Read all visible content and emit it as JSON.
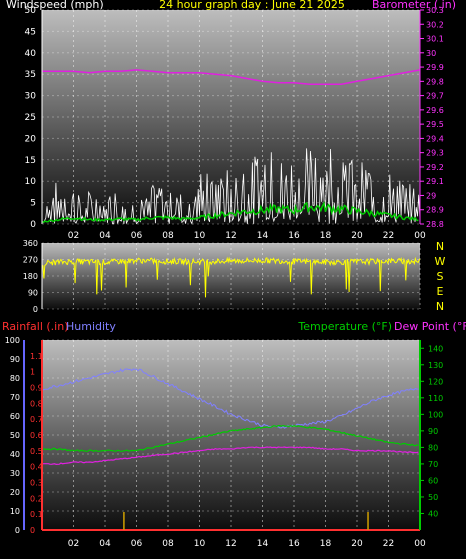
{
  "chart_data": [
    {
      "type": "line",
      "title": "24 hour graph day : June 21 2025",
      "left_label": "Windspeed (mph)",
      "right_label": "Barometer (.in)",
      "x_ticks": [
        "02",
        "04",
        "06",
        "08",
        "10",
        "12",
        "14",
        "16",
        "18",
        "20",
        "22",
        "00"
      ],
      "ylim_left": [
        0,
        50
      ],
      "y_ticks_left": [
        "0",
        "5",
        "10",
        "15",
        "20",
        "25",
        "30",
        "35",
        "40",
        "45",
        "50"
      ],
      "ylim_right": [
        28.8,
        30.3
      ],
      "y_ticks_right": [
        "28.8",
        "28.9",
        "29",
        "29.1",
        "29.2",
        "29.3",
        "29.4",
        "29.5",
        "29.6",
        "29.7",
        "29.8",
        "29.9",
        "30",
        "30.1",
        "30.2",
        "30.3"
      ],
      "colors": {
        "wind_gust": "#ffffff",
        "wind_avg": "#00cc00",
        "barometer": "#e020e0",
        "left_axis": "#ffffff",
        "right_axis": "#ff33ff",
        "title": "#ffff00"
      },
      "series": [
        {
          "key": "barometer",
          "axis": "right",
          "x": [
            0,
            1,
            2,
            3,
            4,
            5,
            6,
            7,
            8,
            9,
            10,
            11,
            12,
            13,
            14,
            15,
            16,
            17,
            18,
            19,
            20,
            21,
            22,
            23,
            24
          ],
          "values": [
            29.87,
            29.87,
            29.87,
            29.86,
            29.87,
            29.87,
            29.88,
            29.87,
            29.86,
            29.86,
            29.86,
            29.85,
            29.84,
            29.82,
            29.8,
            29.79,
            29.79,
            29.78,
            29.78,
            29.78,
            29.8,
            29.82,
            29.84,
            29.86,
            29.88
          ]
        },
        {
          "key": "wind_gust",
          "axis": "left",
          "x": [
            0,
            1,
            2,
            3,
            4,
            5,
            6,
            7,
            8,
            9,
            10,
            11,
            12,
            13,
            14,
            15,
            16,
            17,
            18,
            19,
            20,
            21,
            22,
            23,
            24
          ],
          "values": [
            3,
            7,
            6,
            5,
            4,
            6,
            3,
            6,
            7,
            6,
            8,
            8,
            9,
            10,
            11,
            12,
            11,
            14,
            13,
            12,
            10,
            9,
            8,
            7,
            5
          ]
        },
        {
          "key": "wind_avg",
          "axis": "left",
          "x": [
            0,
            1,
            2,
            3,
            4,
            5,
            6,
            7,
            8,
            9,
            10,
            11,
            12,
            13,
            14,
            15,
            16,
            17,
            18,
            19,
            20,
            21,
            22,
            23,
            24
          ],
          "values": [
            0.5,
            1,
            1.5,
            1,
            1,
            1.2,
            1,
            1.5,
            1.5,
            1.2,
            1.5,
            2,
            2.5,
            3,
            3.2,
            3.5,
            3.2,
            4,
            3.8,
            3.5,
            3,
            2.5,
            2,
            1.5,
            1
          ]
        }
      ]
    },
    {
      "type": "line",
      "ylim": [
        0,
        360
      ],
      "y_ticks": [
        "0",
        "90",
        "180",
        "270",
        "360"
      ],
      "compass_labels": [
        "N",
        "W",
        "S",
        "E",
        "N"
      ],
      "x_ticks": [
        "02",
        "04",
        "06",
        "08",
        "10",
        "12",
        "14",
        "16",
        "18",
        "20",
        "22",
        "00"
      ],
      "colors": {
        "direction": "#ffff00",
        "compass": "#ffff00"
      },
      "series": [
        {
          "key": "wind_direction",
          "x": [
            0,
            2,
            4,
            6,
            8,
            10,
            12,
            14,
            16,
            18,
            20,
            22,
            24
          ],
          "values": [
            250,
            260,
            255,
            265,
            260,
            258,
            262,
            265,
            260,
            255,
            258,
            262,
            260
          ]
        }
      ]
    },
    {
      "type": "line",
      "left_labels": {
        "rainfall": "Rainfall (.in)",
        "humidity": "Humidity"
      },
      "right_labels": {
        "temperature": "Temperature (°F)",
        "dewpoint": "Dew Point (°F)"
      },
      "x_ticks": [
        "02",
        "04",
        "06",
        "08",
        "10",
        "12",
        "14",
        "16",
        "18",
        "20",
        "22",
        "00"
      ],
      "ylim_humidity": [
        0,
        100
      ],
      "y_ticks_humidity": [
        "0",
        "10",
        "20",
        "30",
        "40",
        "50",
        "60",
        "70",
        "80",
        "90",
        "100"
      ],
      "ylim_rain": [
        0,
        1.2
      ],
      "y_ticks_rain": [
        "0",
        "0.1",
        "0.2",
        "0.3",
        "0.4",
        "0.5",
        "0.6",
        "0.7",
        "0.8",
        "0.9",
        "1",
        "1.1"
      ],
      "ylim_temp": [
        30,
        145
      ],
      "y_ticks_temp": [
        "40",
        "50",
        "60",
        "70",
        "80",
        "90",
        "100",
        "110",
        "120",
        "130",
        "140"
      ],
      "colors": {
        "humidity": "#8080ff",
        "temperature": "#00cc00",
        "dewpoint": "#e020e0",
        "rainfall": "#ff3030",
        "rain_axis": "#ff3030",
        "humidity_axis": "#6666ff",
        "temp_axis": "#00cc00",
        "dewpoint_label": "#ff33ff"
      },
      "series": [
        {
          "key": "humidity",
          "axis": "humidity",
          "x": [
            0,
            1,
            2,
            3,
            4,
            5,
            6,
            7,
            8,
            9,
            10,
            11,
            12,
            13,
            14,
            15,
            16,
            17,
            18,
            19,
            20,
            21,
            22,
            23,
            24
          ],
          "values": [
            74,
            76,
            78,
            80,
            82,
            84,
            85,
            81,
            77,
            73,
            69,
            65,
            61,
            58,
            55,
            54,
            55,
            56,
            57,
            60,
            64,
            68,
            71,
            73,
            75
          ]
        },
        {
          "key": "temperature",
          "axis": "temp",
          "x": [
            0,
            1,
            2,
            3,
            4,
            5,
            6,
            7,
            8,
            9,
            10,
            11,
            12,
            13,
            14,
            15,
            16,
            17,
            18,
            19,
            20,
            21,
            22,
            23,
            24
          ],
          "values": [
            79,
            79,
            78,
            78,
            78,
            78,
            78,
            80,
            82,
            84,
            86,
            88,
            90,
            91,
            92,
            93,
            93,
            92,
            91,
            89,
            87,
            85,
            83,
            82,
            81
          ]
        },
        {
          "key": "dewpoint",
          "axis": "temp",
          "x": [
            0,
            1,
            2,
            3,
            4,
            5,
            6,
            7,
            8,
            9,
            10,
            11,
            12,
            13,
            14,
            15,
            16,
            17,
            18,
            19,
            20,
            21,
            22,
            23,
            24
          ],
          "values": [
            70,
            70,
            71,
            71,
            72,
            73,
            74,
            75,
            76,
            77,
            78,
            79,
            79,
            80,
            80,
            80,
            80,
            80,
            79,
            79,
            78,
            78,
            78,
            77,
            77
          ]
        },
        {
          "key": "rainfall",
          "axis": "rain",
          "x": [
            0,
            24
          ],
          "values": [
            0,
            0
          ]
        }
      ],
      "rain_markers_hours": [
        5.2,
        20.7
      ]
    }
  ]
}
